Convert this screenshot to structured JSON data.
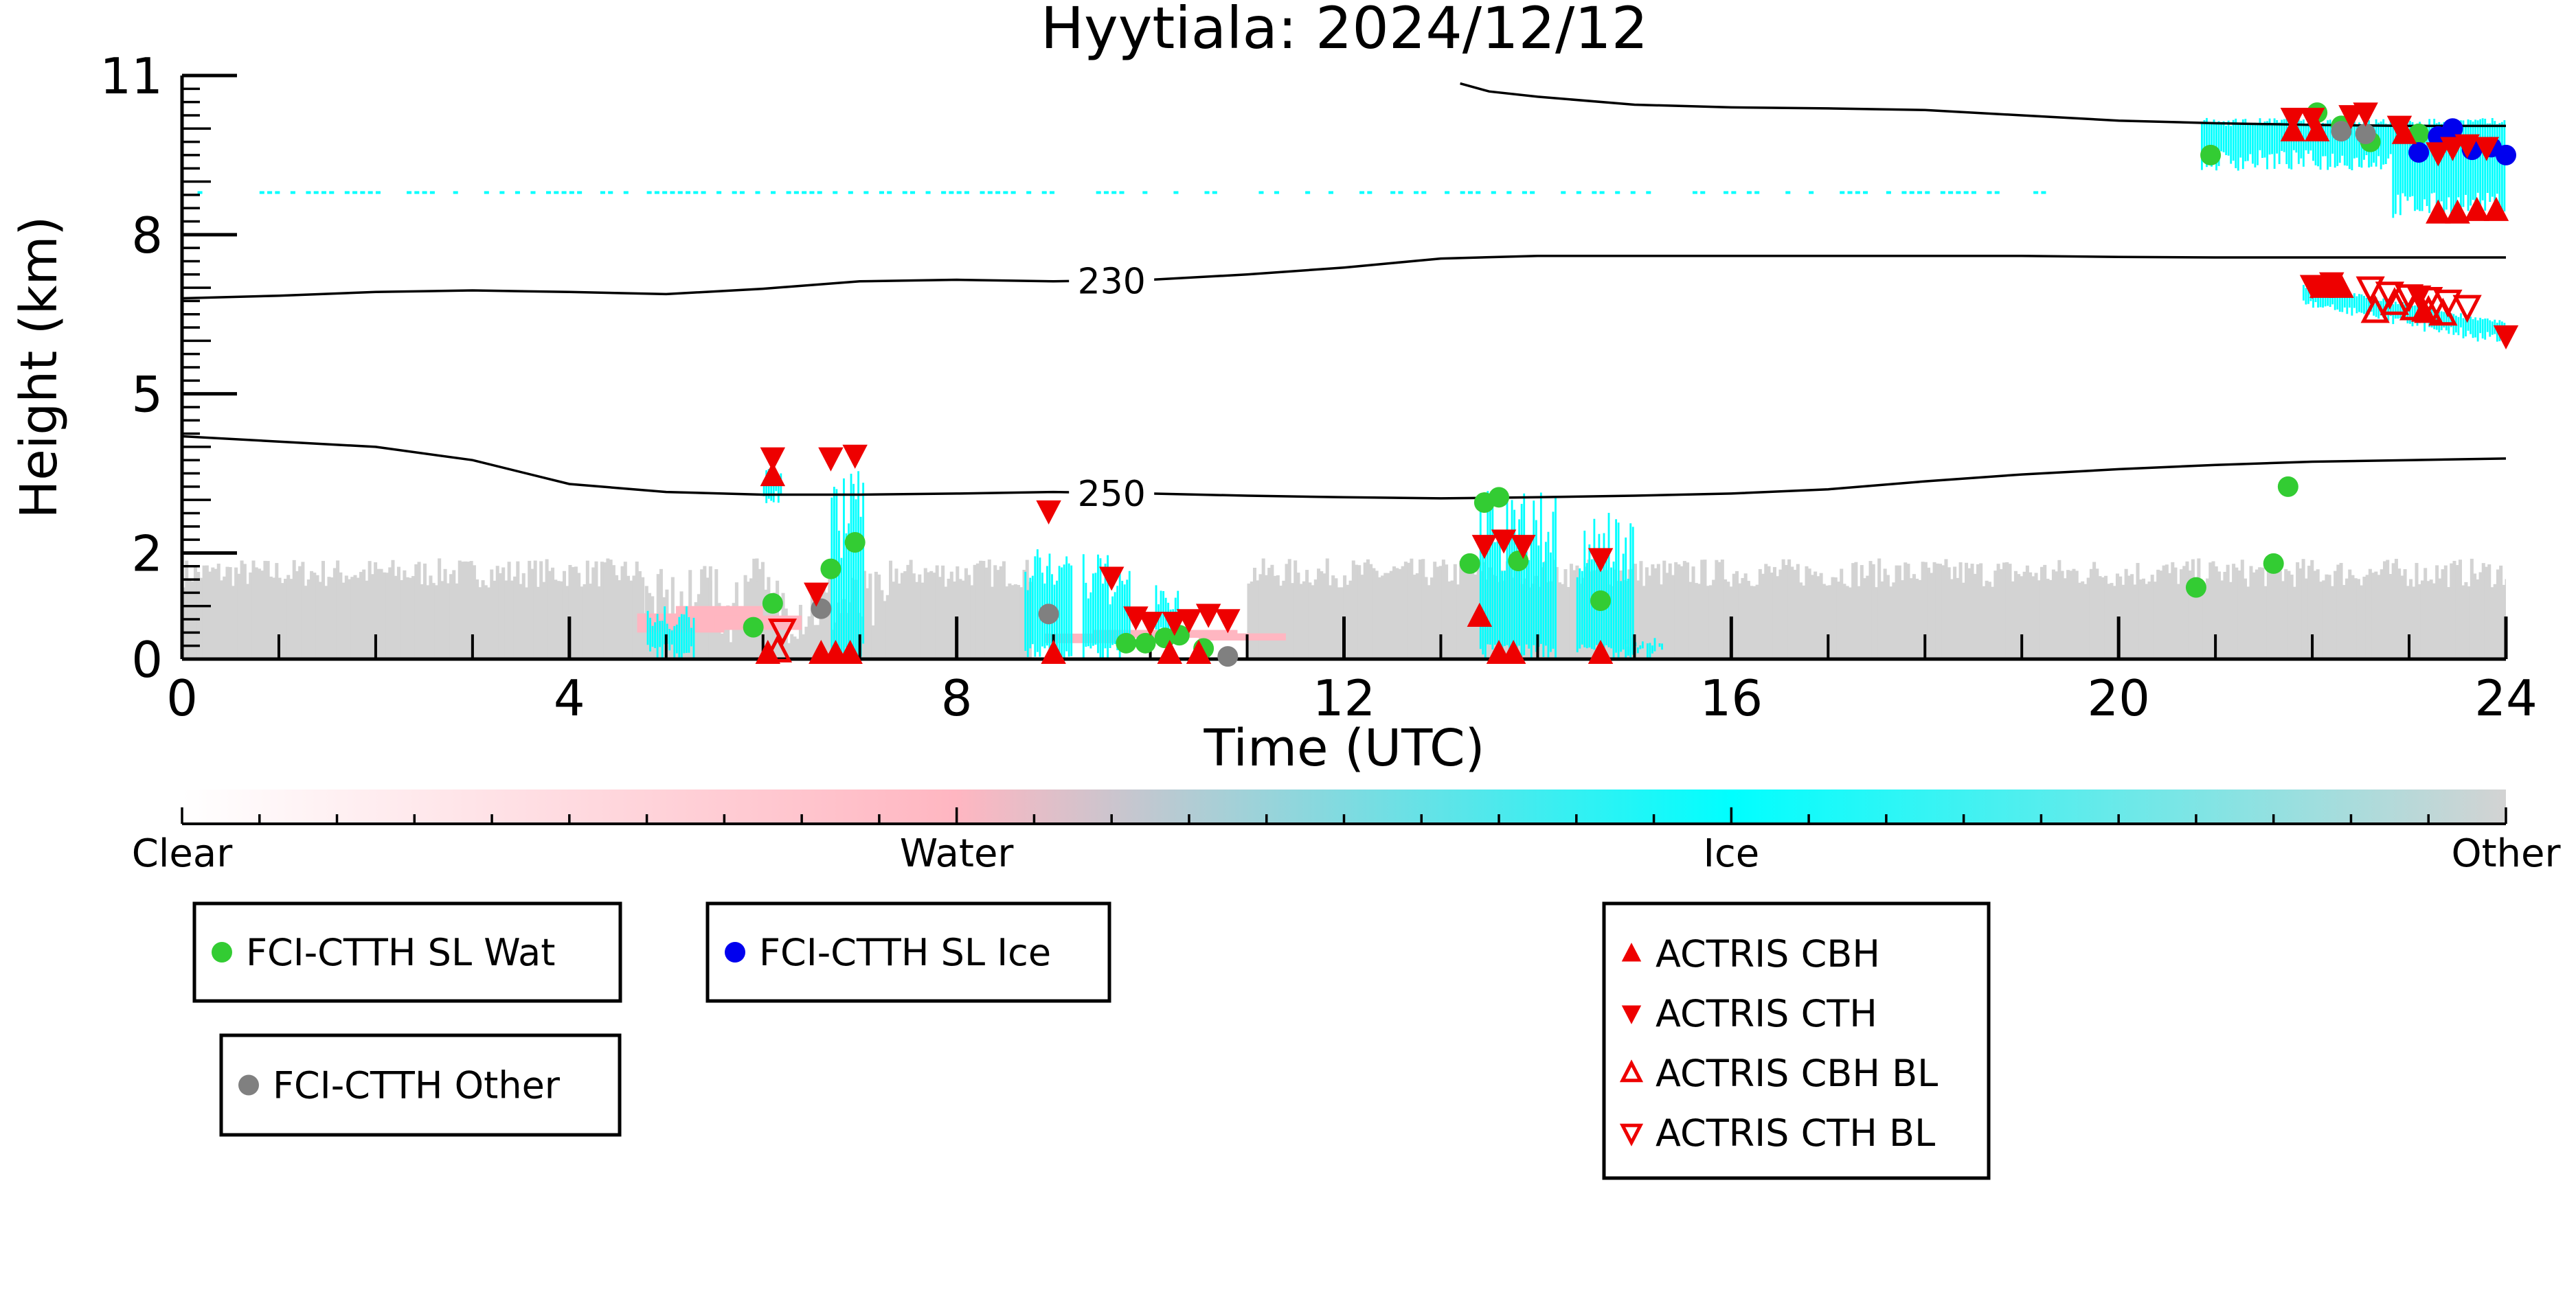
{
  "chart_data": {
    "type": "scatter",
    "title": "Hyytiala: 2024/12/12",
    "xlabel": "Time (UTC)",
    "ylabel": "Height (km)",
    "xlim": [
      0,
      24
    ],
    "ylim": [
      0,
      11
    ],
    "x_ticks": [
      0,
      4,
      8,
      12,
      16,
      20,
      24
    ],
    "y_ticks": [
      0,
      2,
      5,
      8,
      11
    ],
    "grid": false,
    "colorbar": {
      "labels": [
        "Clear",
        "Water",
        "Ice",
        "Other"
      ],
      "colors": [
        "#ffffff",
        "#ffb6c1",
        "#00ffff",
        "#d3d3d3"
      ]
    },
    "temperature_contours": [
      {
        "label": "230",
        "label_x": 9.6,
        "x": [
          0,
          1,
          2,
          3,
          4,
          5,
          6,
          7,
          8,
          9,
          10,
          11,
          12,
          13,
          14,
          15,
          16,
          17,
          18,
          19,
          20,
          21,
          22,
          23,
          24
        ],
        "y": [
          6.8,
          6.85,
          6.92,
          6.95,
          6.92,
          6.88,
          6.98,
          7.12,
          7.15,
          7.12,
          7.15,
          7.25,
          7.38,
          7.55,
          7.6,
          7.6,
          7.6,
          7.6,
          7.6,
          7.6,
          7.58,
          7.57,
          7.57,
          7.57,
          7.57
        ]
      },
      {
        "label": "250",
        "label_x": 9.6,
        "x": [
          0,
          1,
          2,
          3,
          4,
          5,
          6,
          7,
          8,
          9,
          10,
          11,
          12,
          13,
          14,
          15,
          16,
          17,
          18,
          19,
          20,
          21,
          22,
          23,
          24
        ],
        "y": [
          4.2,
          4.1,
          4.0,
          3.75,
          3.3,
          3.15,
          3.1,
          3.1,
          3.12,
          3.15,
          3.12,
          3.08,
          3.05,
          3.03,
          3.05,
          3.08,
          3.12,
          3.2,
          3.35,
          3.48,
          3.58,
          3.66,
          3.72,
          3.75,
          3.78
        ]
      },
      {
        "label": "",
        "x": [
          13.2,
          13.5,
          14,
          15,
          16,
          17,
          18,
          19,
          20,
          21,
          22,
          23,
          24
        ],
        "y": [
          10.85,
          10.7,
          10.6,
          10.45,
          10.4,
          10.38,
          10.35,
          10.25,
          10.15,
          10.1,
          10.07,
          10.05,
          10.05
        ]
      }
    ],
    "series": [
      {
        "name": "FCI-CTTH SL Wat",
        "color": "#33cc33",
        "marker": "circle",
        "points": [
          [
            5.9,
            0.6
          ],
          [
            6.1,
            1.05
          ],
          [
            6.7,
            1.7
          ],
          [
            6.95,
            2.2
          ],
          [
            9.75,
            0.3
          ],
          [
            9.95,
            0.3
          ],
          [
            10.15,
            0.4
          ],
          [
            10.3,
            0.45
          ],
          [
            10.55,
            0.2
          ],
          [
            13.3,
            1.8
          ],
          [
            13.45,
            2.95
          ],
          [
            13.6,
            3.05
          ],
          [
            13.8,
            1.85
          ],
          [
            14.65,
            1.1
          ],
          [
            20.8,
            1.35
          ],
          [
            20.95,
            9.5
          ],
          [
            21.6,
            1.8
          ],
          [
            21.75,
            3.25
          ],
          [
            22.05,
            10.3
          ],
          [
            22.3,
            10.05
          ],
          [
            22.6,
            9.75
          ],
          [
            23.1,
            9.9
          ]
        ]
      },
      {
        "name": "FCI-CTTH SL Ice",
        "color": "#0000ee",
        "marker": "circle",
        "points": [
          [
            23.1,
            9.55
          ],
          [
            23.3,
            9.85
          ],
          [
            23.45,
            10.0
          ],
          [
            23.65,
            9.6
          ],
          [
            23.85,
            9.65
          ],
          [
            24.0,
            9.5
          ]
        ]
      },
      {
        "name": "FCI-CTTH Other",
        "color": "#808080",
        "marker": "circle",
        "points": [
          [
            6.6,
            0.95
          ],
          [
            8.95,
            0.85
          ],
          [
            10.8,
            0.05
          ],
          [
            22.3,
            9.95
          ],
          [
            22.55,
            9.9
          ]
        ]
      },
      {
        "name": "ACTRIS CBH",
        "color": "#ee0000",
        "marker": "triangle-up",
        "points": [
          [
            6.1,
            3.45
          ],
          [
            6.05,
            0.1
          ],
          [
            6.6,
            0.1
          ],
          [
            6.75,
            0.1
          ],
          [
            6.9,
            0.1
          ],
          [
            9.0,
            0.1
          ],
          [
            10.2,
            0.1
          ],
          [
            10.5,
            0.1
          ],
          [
            13.4,
            0.8
          ],
          [
            13.6,
            0.1
          ],
          [
            13.75,
            0.1
          ],
          [
            14.65,
            0.1
          ],
          [
            21.8,
            9.95
          ],
          [
            22.05,
            9.95
          ],
          [
            22.95,
            9.9
          ],
          [
            23.3,
            8.4
          ],
          [
            23.5,
            8.4
          ],
          [
            23.7,
            8.45
          ],
          [
            23.9,
            8.45
          ],
          [
            22.1,
            7.0
          ],
          [
            22.3,
            7.0
          ],
          [
            23.15,
            6.55
          ]
        ]
      },
      {
        "name": "ACTRIS CTH",
        "color": "#ee0000",
        "marker": "triangle-down",
        "points": [
          [
            6.1,
            3.8
          ],
          [
            6.7,
            3.8
          ],
          [
            6.95,
            3.85
          ],
          [
            6.55,
            1.25
          ],
          [
            8.95,
            2.8
          ],
          [
            9.6,
            1.55
          ],
          [
            9.85,
            0.8
          ],
          [
            10.0,
            0.7
          ],
          [
            10.25,
            0.7
          ],
          [
            10.4,
            0.75
          ],
          [
            10.6,
            0.85
          ],
          [
            10.8,
            0.75
          ],
          [
            13.45,
            2.15
          ],
          [
            13.65,
            2.25
          ],
          [
            13.85,
            2.15
          ],
          [
            14.65,
            1.9
          ],
          [
            21.8,
            10.2
          ],
          [
            22.0,
            10.2
          ],
          [
            22.4,
            10.25
          ],
          [
            22.55,
            10.3
          ],
          [
            22.9,
            10.05
          ],
          [
            23.3,
            9.55
          ],
          [
            23.45,
            9.65
          ],
          [
            23.6,
            9.7
          ],
          [
            23.8,
            9.65
          ],
          [
            24.0,
            6.1
          ],
          [
            22.0,
            7.05
          ],
          [
            22.2,
            7.1
          ],
          [
            23.1,
            6.85
          ]
        ]
      },
      {
        "name": "ACTRIS CBH BL",
        "color": "#ee0000",
        "marker": "triangle-up-open",
        "points": [
          [
            6.15,
            0.15
          ],
          [
            22.65,
            6.55
          ],
          [
            22.85,
            6.7
          ],
          [
            23.05,
            6.6
          ],
          [
            23.2,
            6.55
          ],
          [
            23.35,
            6.5
          ]
        ]
      },
      {
        "name": "ACTRIS CTH BL",
        "color": "#ee0000",
        "marker": "triangle-down-open",
        "points": [
          [
            6.2,
            0.55
          ],
          [
            22.6,
            7.0
          ],
          [
            22.8,
            6.9
          ],
          [
            23.0,
            6.85
          ],
          [
            23.2,
            6.8
          ],
          [
            23.4,
            6.75
          ],
          [
            23.6,
            6.65
          ]
        ]
      }
    ],
    "legend_boxes": [
      {
        "entries": [
          0
        ]
      },
      {
        "entries": [
          1
        ]
      },
      {
        "entries": [
          2
        ]
      },
      {
        "entries": [
          3,
          4,
          5,
          6
        ]
      }
    ]
  }
}
